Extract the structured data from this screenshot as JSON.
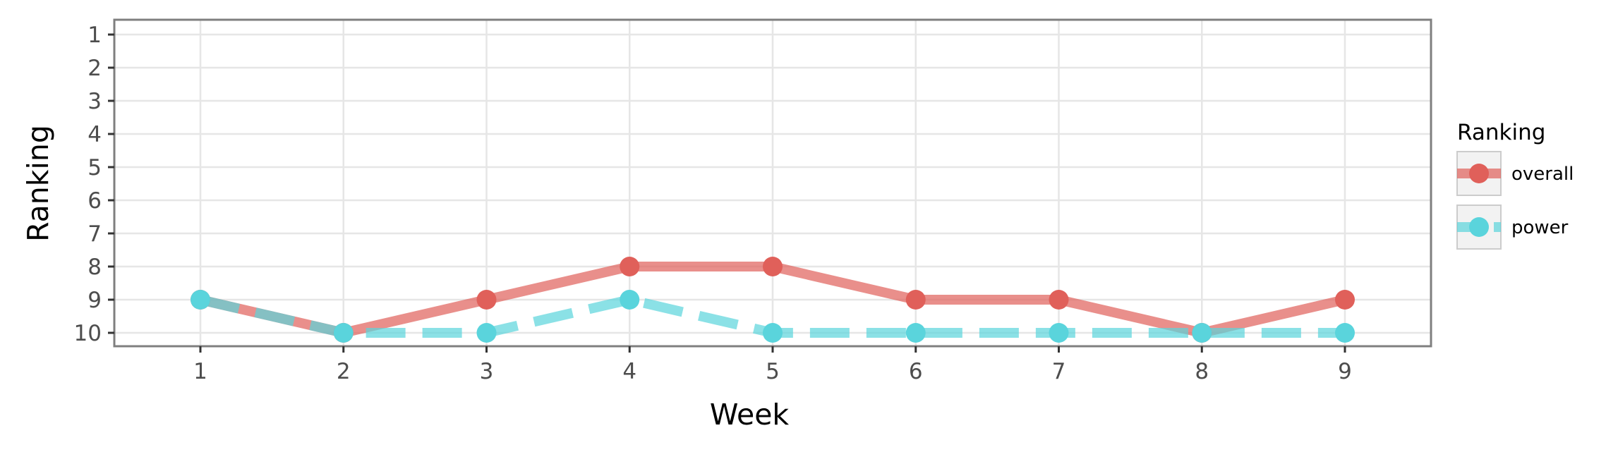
{
  "chart_data": {
    "type": "line",
    "xlabel": "Week",
    "ylabel": "Ranking",
    "x": [
      1,
      2,
      3,
      4,
      5,
      6,
      7,
      8,
      9
    ],
    "x_ticks": [
      "1",
      "2",
      "3",
      "4",
      "5",
      "6",
      "7",
      "8",
      "9"
    ],
    "y_ticks": [
      "1",
      "2",
      "3",
      "4",
      "5",
      "6",
      "7",
      "8",
      "9",
      "10"
    ],
    "ylim": [
      1,
      10
    ],
    "y_reversed": true,
    "grid": true,
    "legend": {
      "title": "Ranking",
      "position": "right"
    },
    "series": [
      {
        "name": "overall",
        "values": [
          9,
          10,
          9,
          8,
          8,
          9,
          9,
          10,
          9
        ],
        "color": "#e0605a",
        "line_style": "solid"
      },
      {
        "name": "power",
        "values": [
          9,
          10,
          10,
          9,
          10,
          10,
          10,
          10,
          10
        ],
        "color": "#5ad4dc",
        "line_style": "dashed"
      }
    ]
  }
}
